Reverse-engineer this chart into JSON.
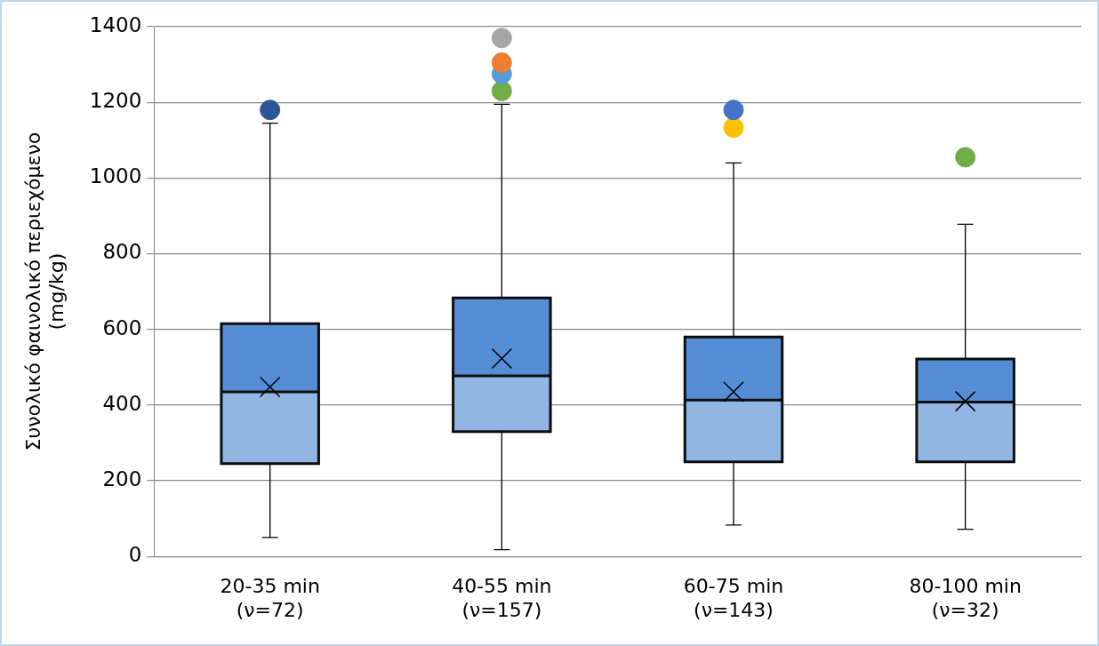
{
  "chart_data": {
    "type": "box",
    "ylabel": "Συνολικό φαινολικό περιεχόμενο\n(mg/kg)",
    "categories": [
      "20-35 min\n(ν=72)",
      "40-55 min\n(ν=157)",
      "60-75 min\n(ν=143)",
      "80-100 min\n(ν=32)"
    ],
    "ylim": [
      0,
      1400
    ],
    "yticks": [
      0,
      200,
      400,
      600,
      800,
      1000,
      1200,
      1400
    ],
    "grid": "y",
    "legend": false,
    "marker": "circle",
    "series": [
      {
        "color": "#558ed5",
        "boxes": [
          {
            "low": 50,
            "q1": 245,
            "median": 435,
            "q3": 615,
            "high": 1145,
            "mean": 448
          },
          {
            "low": 18,
            "q1": 330,
            "median": 477,
            "q3": 683,
            "high": 1195,
            "mean": 523
          },
          {
            "low": 83,
            "q1": 250,
            "median": 413,
            "q3": 580,
            "high": 1040,
            "mean": 435
          },
          {
            "low": 72,
            "q1": 250,
            "median": 408,
            "q3": 522,
            "high": 878,
            "mean": 410
          }
        ]
      },
      {
        "type": "scatter",
        "x": [
          "20-35 min\n(ν=72)",
          "40-55 min\n(ν=157)",
          "40-55 min\n(ν=157)",
          "40-55 min\n(ν=157)",
          "40-55 min\n(ν=157)",
          "60-75 min\n(ν=143)",
          "60-75 min\n(ν=143)",
          "80-100 min\n(ν=32)"
        ],
        "values": [
          1180,
          1230,
          1275,
          1305,
          1370,
          1133,
          1180,
          1055
        ],
        "colors": [
          "#2f5597",
          "#70ad47",
          "#5b9bd5",
          "#ed7d31",
          "#a5a5a5",
          "#ffc000",
          "#4472c4",
          "#70ad47"
        ]
      }
    ]
  }
}
